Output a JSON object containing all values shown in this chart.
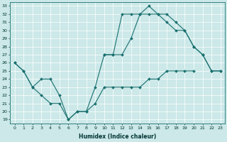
{
  "xlabel": "Humidex (Indice chaleur)",
  "ylabel": "",
  "background_color": "#cce8e8",
  "line_color": "#1a7070",
  "xlim": [
    -0.5,
    23.5
  ],
  "ylim": [
    18.5,
    33.5
  ],
  "xticks": [
    0,
    1,
    2,
    3,
    4,
    5,
    6,
    7,
    8,
    9,
    10,
    11,
    12,
    13,
    14,
    15,
    16,
    17,
    18,
    19,
    20,
    21,
    22,
    23
  ],
  "yticks": [
    19,
    20,
    21,
    22,
    23,
    24,
    25,
    26,
    27,
    28,
    29,
    30,
    31,
    32,
    33
  ],
  "series": [
    {
      "x": [
        0,
        1,
        2,
        3,
        4,
        5,
        6,
        7,
        8,
        9,
        10,
        11,
        12,
        13,
        14,
        15,
        16,
        17,
        18,
        19,
        20
      ],
      "y": [
        26,
        25,
        23,
        22,
        21,
        21,
        19,
        20,
        20,
        21,
        23,
        23,
        23,
        23,
        23,
        24,
        24,
        25,
        25,
        25,
        25
      ]
    },
    {
      "x": [
        0,
        1,
        2,
        3,
        4,
        5,
        6,
        7,
        8,
        9,
        10,
        11,
        12,
        13,
        14,
        15,
        16,
        17,
        18,
        19,
        20,
        21,
        22,
        23
      ],
      "y": [
        26,
        25,
        23,
        24,
        24,
        22,
        19,
        20,
        20,
        23,
        27,
        27,
        32,
        32,
        32,
        33,
        32,
        31,
        30,
        30,
        28,
        27,
        25,
        25
      ]
    },
    {
      "x": [
        10,
        11,
        12,
        13,
        14,
        15,
        16,
        17,
        18,
        19,
        20,
        21,
        22,
        23
      ],
      "y": [
        27,
        27,
        27,
        29,
        32,
        32,
        32,
        32,
        31,
        30,
        28,
        27,
        25,
        25
      ]
    }
  ]
}
